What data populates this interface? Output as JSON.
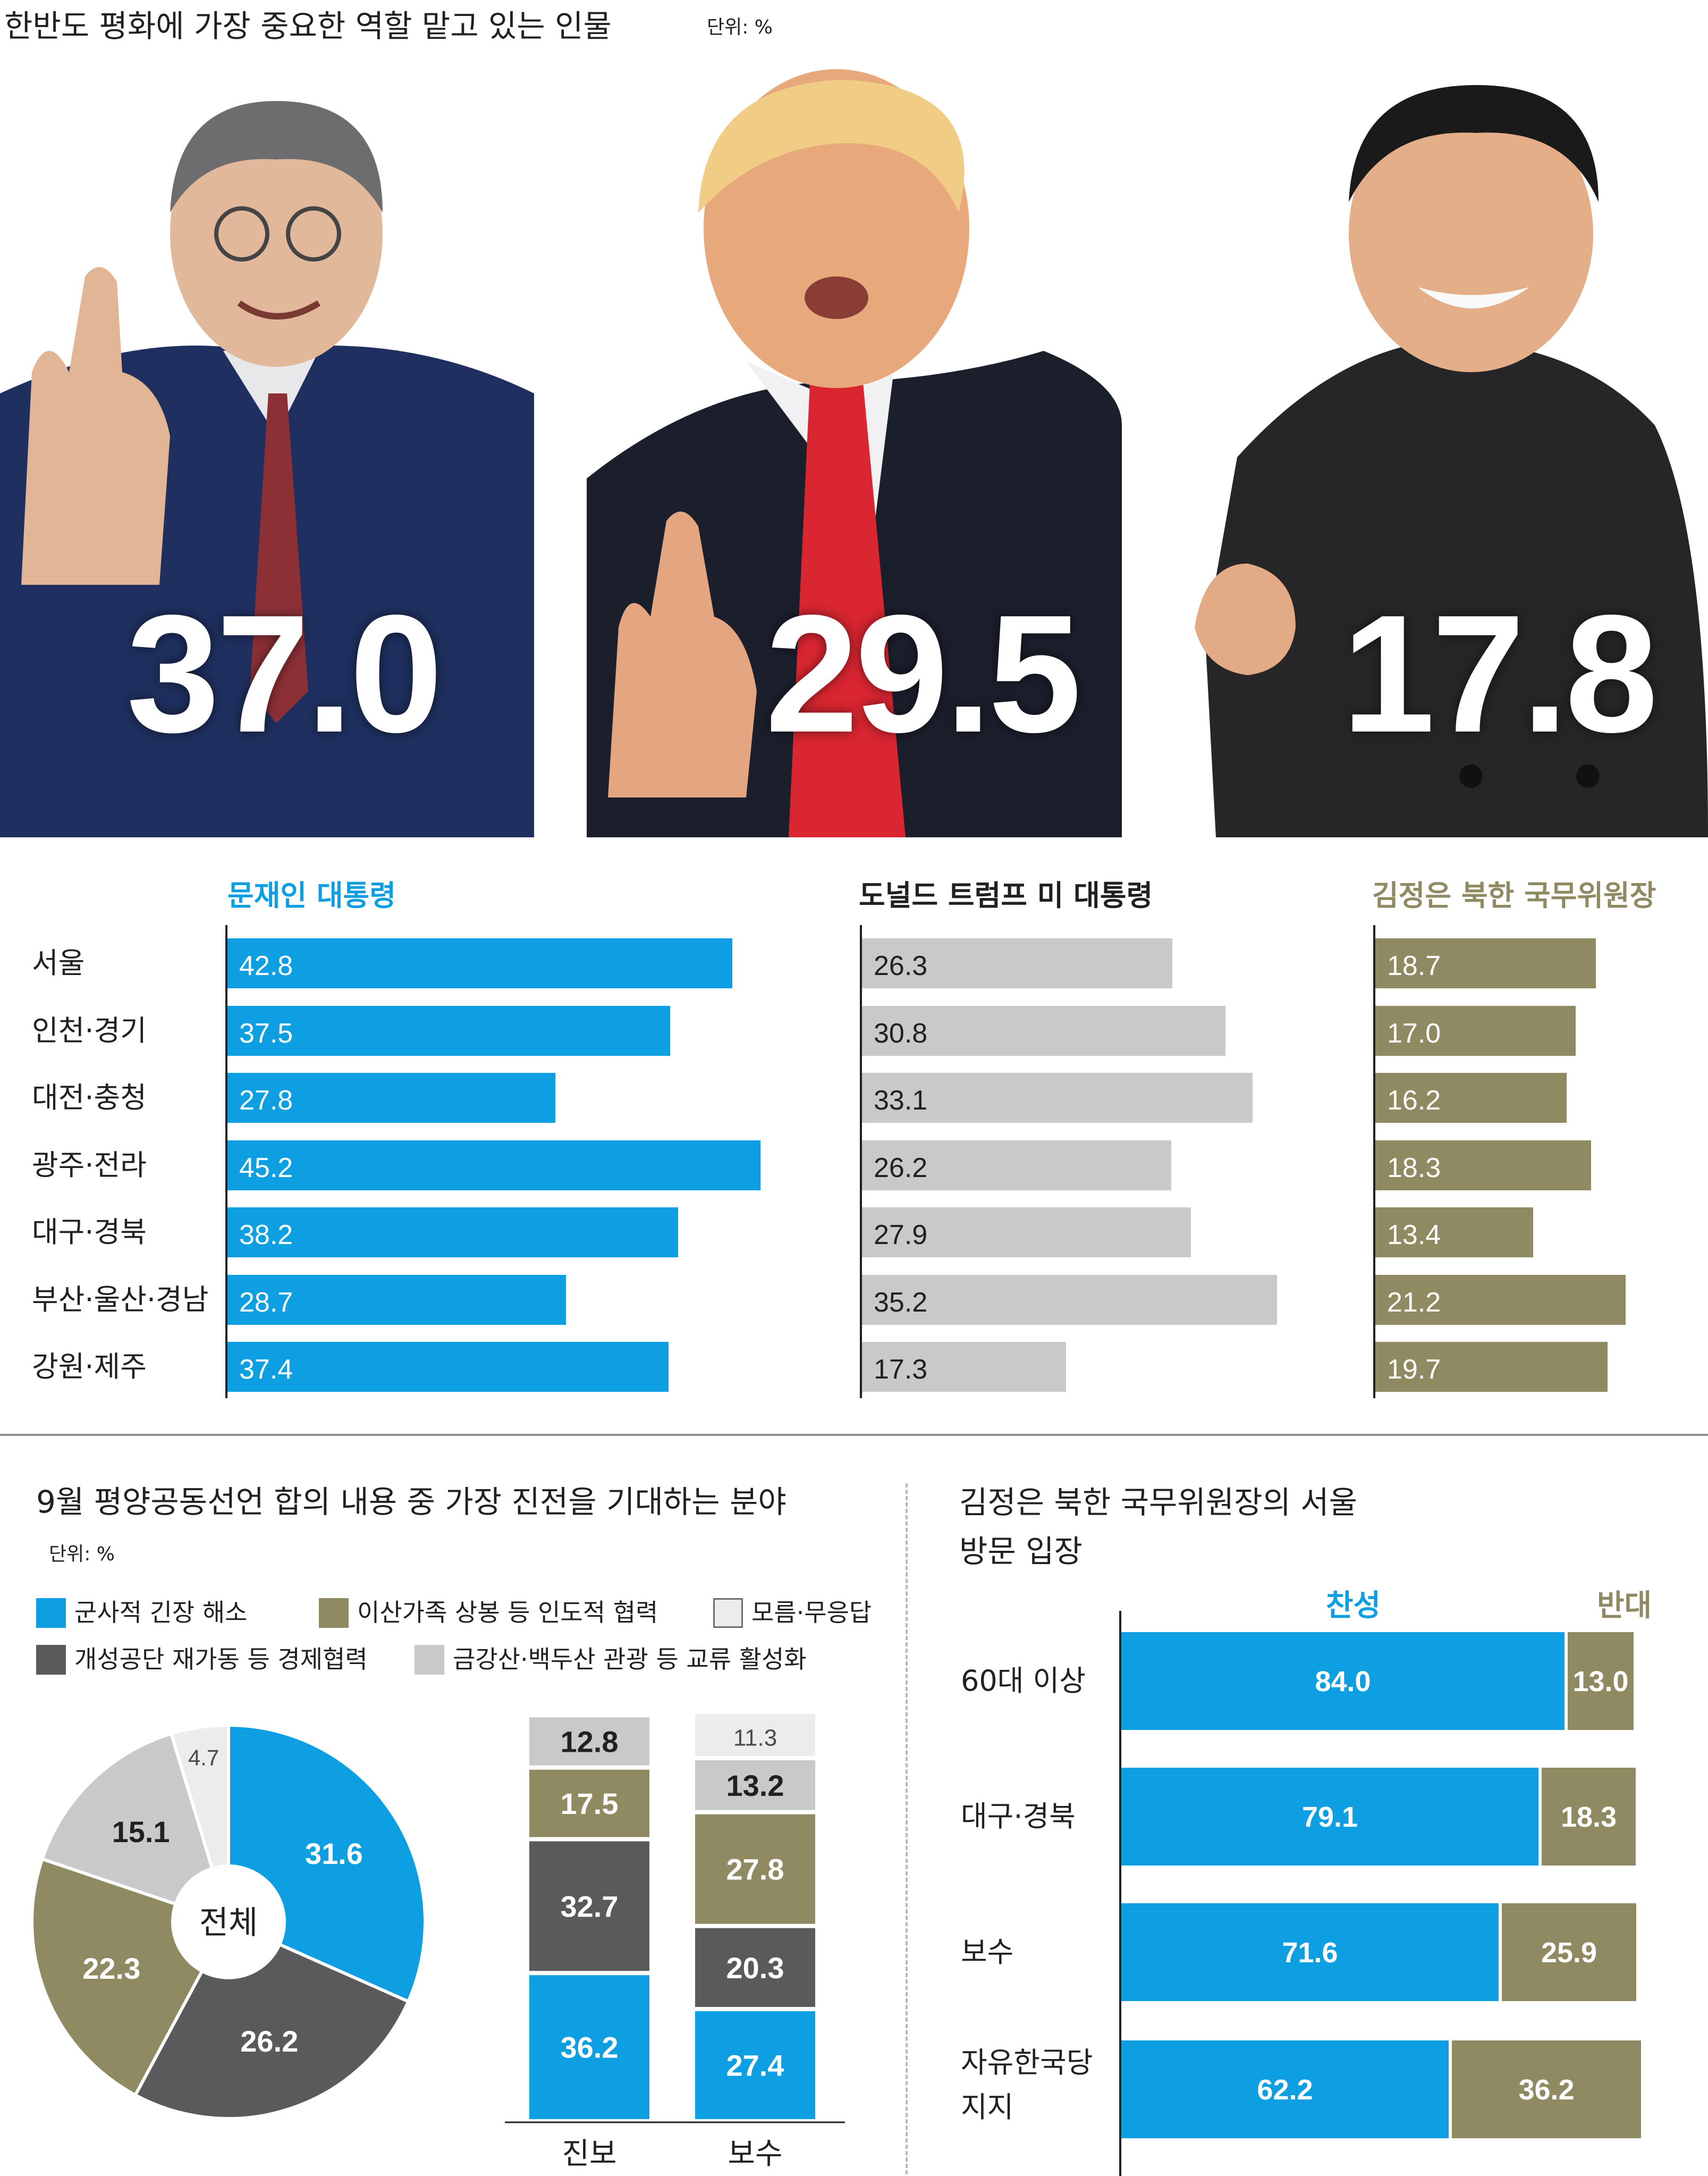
{
  "header": {
    "title": "한반도 평화에 가장 중요한 역할 맡고 있는 인물",
    "unit": "단위: %"
  },
  "colors": {
    "blue": "#0d9fe2",
    "gray": "#c9c9cb",
    "olive": "#8f8a62",
    "dark": "#5a5a5c",
    "lightgray": "#ececec"
  },
  "icons": [
    "person-photo-moon",
    "person-photo-trump",
    "person-photo-kim"
  ],
  "persons": [
    {
      "name": "문재인 대통령",
      "total": "37.0"
    },
    {
      "name": "도널드 트럼프 미 대통령",
      "total": "29.5"
    },
    {
      "name": "김정은 북한 국무위원장",
      "total": "17.8"
    }
  ],
  "chart_data": [
    {
      "type": "bar",
      "title": "한반도 평화에 가장 중요한 역할 맡고 있는 인물",
      "unit": "단위: %",
      "categories": [
        "서울",
        "인천·경기",
        "대전·충청",
        "광주·전라",
        "대구·경북",
        "부산·울산·경남",
        "강원·제주"
      ],
      "series": [
        {
          "name": "문재인 대통령",
          "total": 37.0,
          "values": [
            42.8,
            37.5,
            27.8,
            45.2,
            38.2,
            28.7,
            37.4
          ],
          "labels": [
            "42.8",
            "37.5",
            "27.8",
            "45.2",
            "38.2",
            "28.7",
            "37.4"
          ]
        },
        {
          "name": "도널드 트럼프 미 대통령",
          "total": 29.5,
          "values": [
            26.3,
            30.8,
            33.1,
            26.2,
            27.9,
            35.2,
            17.3
          ],
          "labels": [
            "26.3",
            "30.8",
            "33.1",
            "26.2",
            "27.9",
            "35.2",
            "17.3"
          ]
        },
        {
          "name": "김정은 북한 국무위원장",
          "total": 17.8,
          "values": [
            18.7,
            17.0,
            16.2,
            18.3,
            13.4,
            21.2,
            19.7
          ],
          "labels": [
            "18.7",
            "17.0",
            "16.2",
            "18.3",
            "13.4",
            "21.2",
            "19.7"
          ]
        }
      ]
    },
    {
      "type": "pie",
      "title": "9월 평양공동선언 합의 내용 중 가장 진전을 기대하는 분야",
      "unit": "단위: %",
      "center_label": "전체",
      "legend": [
        "군사적 긴장 해소",
        "이산가족 상봉 등 인도적 협력",
        "모름·무응답",
        "개성공단 재가동 등 경제협력",
        "금강산·백두산 관광 등 교류 활성화"
      ],
      "slices": [
        {
          "name": "군사적 긴장 해소",
          "value": 31.6,
          "label": "31.6"
        },
        {
          "name": "개성공단 재가동 등 경제협력",
          "value": 26.2,
          "label": "26.2"
        },
        {
          "name": "이산가족 상봉 등 인도적 협력",
          "value": 22.3,
          "label": "22.3"
        },
        {
          "name": "금강산·백두산 관광 등 교류 활성화",
          "value": 15.1,
          "label": "15.1"
        },
        {
          "name": "모름·무응답",
          "value": 4.7,
          "label": "4.7"
        }
      ]
    },
    {
      "type": "bar",
      "stacked": true,
      "categories": [
        "진보",
        "보수"
      ],
      "series": [
        {
          "name": "군사적 긴장 해소",
          "values": [
            36.2,
            27.4
          ],
          "labels": [
            "36.2",
            "27.4"
          ]
        },
        {
          "name": "개성공단 재가동 등 경제협력",
          "values": [
            32.7,
            20.3
          ],
          "labels": [
            "32.7",
            "20.3"
          ]
        },
        {
          "name": "이산가족 상봉 등 인도적 협력",
          "values": [
            17.5,
            27.8
          ],
          "labels": [
            "17.5",
            "27.8"
          ]
        },
        {
          "name": "금강산·백두산 관광 등 교류 활성화",
          "values": [
            12.8,
            13.2
          ],
          "labels": [
            "12.8",
            "13.2"
          ]
        },
        {
          "name": "모름·무응답",
          "values": [
            0,
            11.3
          ],
          "labels": [
            "",
            "11.3"
          ]
        }
      ]
    },
    {
      "type": "bar",
      "stacked": true,
      "orientation": "horizontal",
      "title": "김정은 북한 국무위원장의 서울 방문 입장",
      "categories": [
        "60대 이상",
        "대구·경북",
        "보수",
        "자유한국당 지지"
      ],
      "series": [
        {
          "name": "찬성",
          "values": [
            84.0,
            79.1,
            71.6,
            62.2
          ],
          "labels": [
            "84.0",
            "79.1",
            "71.6",
            "62.2"
          ]
        },
        {
          "name": "반대",
          "values": [
            13.0,
            18.3,
            25.9,
            36.2
          ],
          "labels": [
            "13.0",
            "18.3",
            "25.9",
            "36.2"
          ]
        }
      ]
    }
  ]
}
